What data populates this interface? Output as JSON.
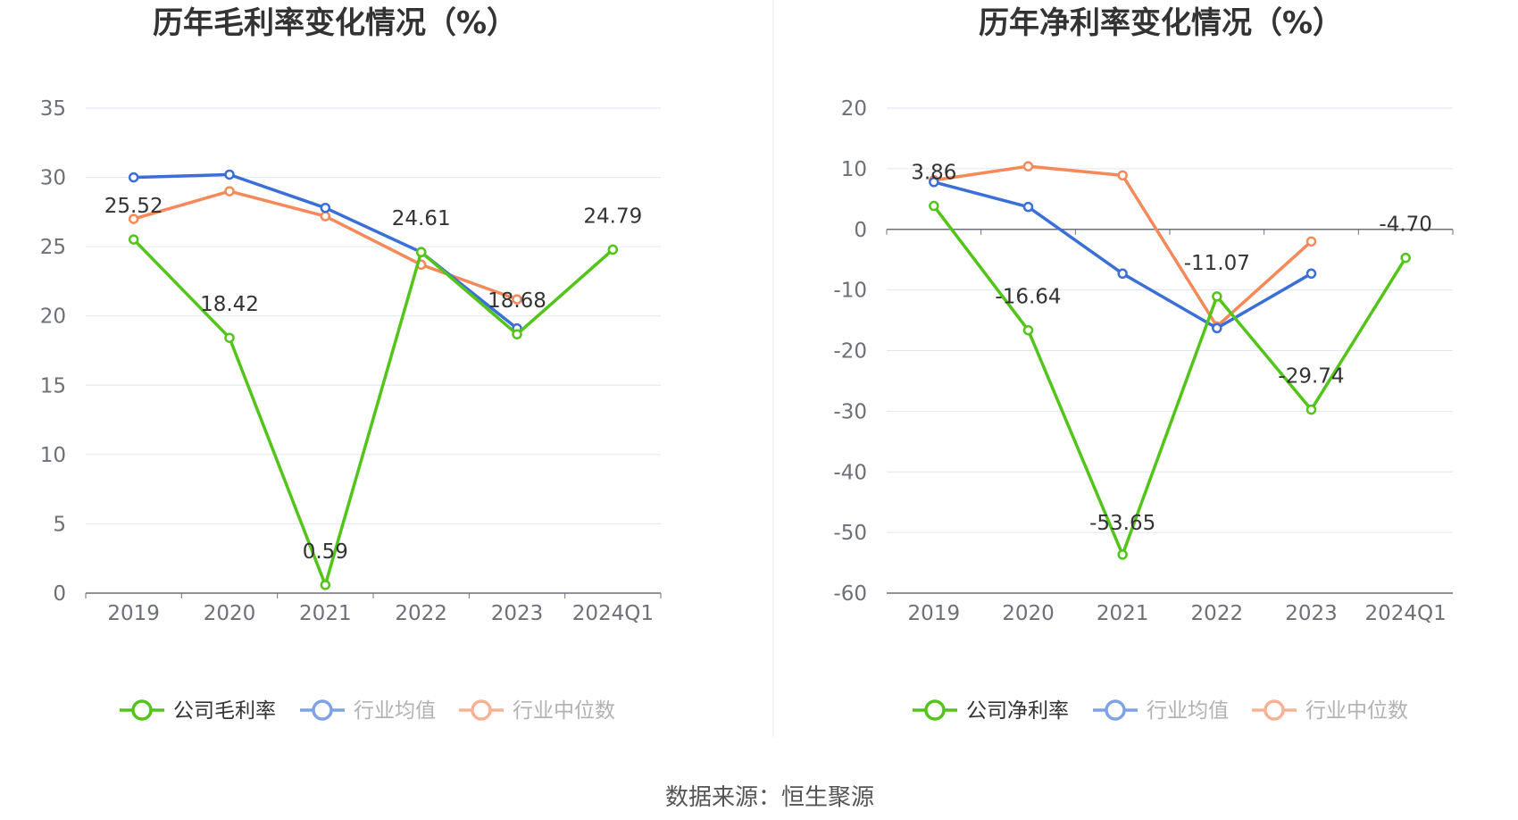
{
  "colors": {
    "company": "#52c41a",
    "industry_avg": "#3b6fd8",
    "industry_median": "#f5895a",
    "grid": "#e0e6f1",
    "axis": "#6e7079"
  },
  "source_text": "数据来源：恒生聚源",
  "chart_data": [
    {
      "type": "line",
      "title": "历年毛利率变化情况（%）",
      "categories": [
        "2019",
        "2020",
        "2021",
        "2022",
        "2023",
        "2024Q1"
      ],
      "ylim": [
        0,
        35
      ],
      "yticks": [
        "35",
        "30",
        "25",
        "20",
        "15",
        "10",
        "5",
        "0"
      ],
      "legend": "bottom",
      "series": [
        {
          "name": "公司毛利率",
          "values": [
            25.52,
            18.42,
            0.59,
            24.61,
            18.68,
            24.79
          ],
          "labels": [
            "25.52",
            "18.42",
            "0.59",
            "24.61",
            "18.68",
            "24.79"
          ]
        },
        {
          "name": "行业均值",
          "values": [
            30.0,
            30.2,
            27.8,
            24.6,
            19.1,
            null
          ]
        },
        {
          "name": "行业中位数",
          "values": [
            27.0,
            29.0,
            27.2,
            23.7,
            21.2,
            null
          ]
        }
      ]
    },
    {
      "type": "line",
      "title": "历年净利率变化情况（%）",
      "categories": [
        "2019",
        "2020",
        "2021",
        "2022",
        "2023",
        "2024Q1"
      ],
      "ylim": [
        -60,
        20
      ],
      "yticks": [
        "20",
        "10",
        "0",
        "-10",
        "-20",
        "-30",
        "-40",
        "-50",
        "-60"
      ],
      "legend": "bottom",
      "series": [
        {
          "name": "公司净利率",
          "values": [
            3.86,
            -16.64,
            -53.65,
            -11.07,
            -29.74,
            -4.7
          ],
          "labels": [
            "3.86",
            "-16.64",
            "-53.65",
            "-11.07",
            "-29.74",
            "-4.70"
          ]
        },
        {
          "name": "行业均值",
          "values": [
            7.8,
            3.7,
            -7.3,
            -16.3,
            -7.3,
            null
          ]
        },
        {
          "name": "行业中位数",
          "values": [
            8.1,
            10.4,
            8.9,
            -16.0,
            -2.0,
            null
          ]
        }
      ]
    }
  ]
}
